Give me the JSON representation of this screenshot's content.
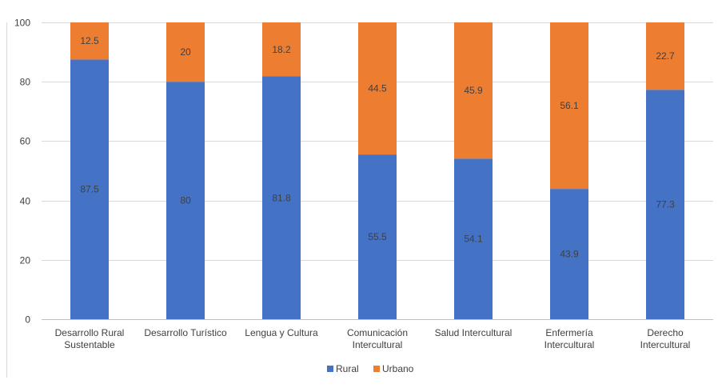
{
  "chart_data": {
    "type": "bar",
    "stacked": true,
    "categories": [
      [
        "Desarrollo Rural",
        "Sustentable"
      ],
      [
        "Desarrollo Turístico"
      ],
      [
        "Lengua y Cultura"
      ],
      [
        "Comunicación",
        "Intercultural"
      ],
      [
        "Salud Intercultural"
      ],
      [
        "Enfermería",
        "Intercultural"
      ],
      [
        "Derecho",
        "Intercultural"
      ]
    ],
    "series": [
      {
        "name": "Rural",
        "color": "#4472C4",
        "values": [
          87.5,
          80,
          81.8,
          55.5,
          54.1,
          43.9,
          77.3
        ]
      },
      {
        "name": "Urbano",
        "color": "#ED7D31",
        "values": [
          12.5,
          20,
          18.2,
          44.5,
          45.9,
          56.1,
          22.7
        ]
      }
    ],
    "ylim": [
      0,
      100
    ],
    "yticks": [
      0,
      20,
      40,
      60,
      80,
      100
    ],
    "grid": true,
    "legend": "bottom",
    "title": "",
    "xlabel": "",
    "ylabel": ""
  }
}
